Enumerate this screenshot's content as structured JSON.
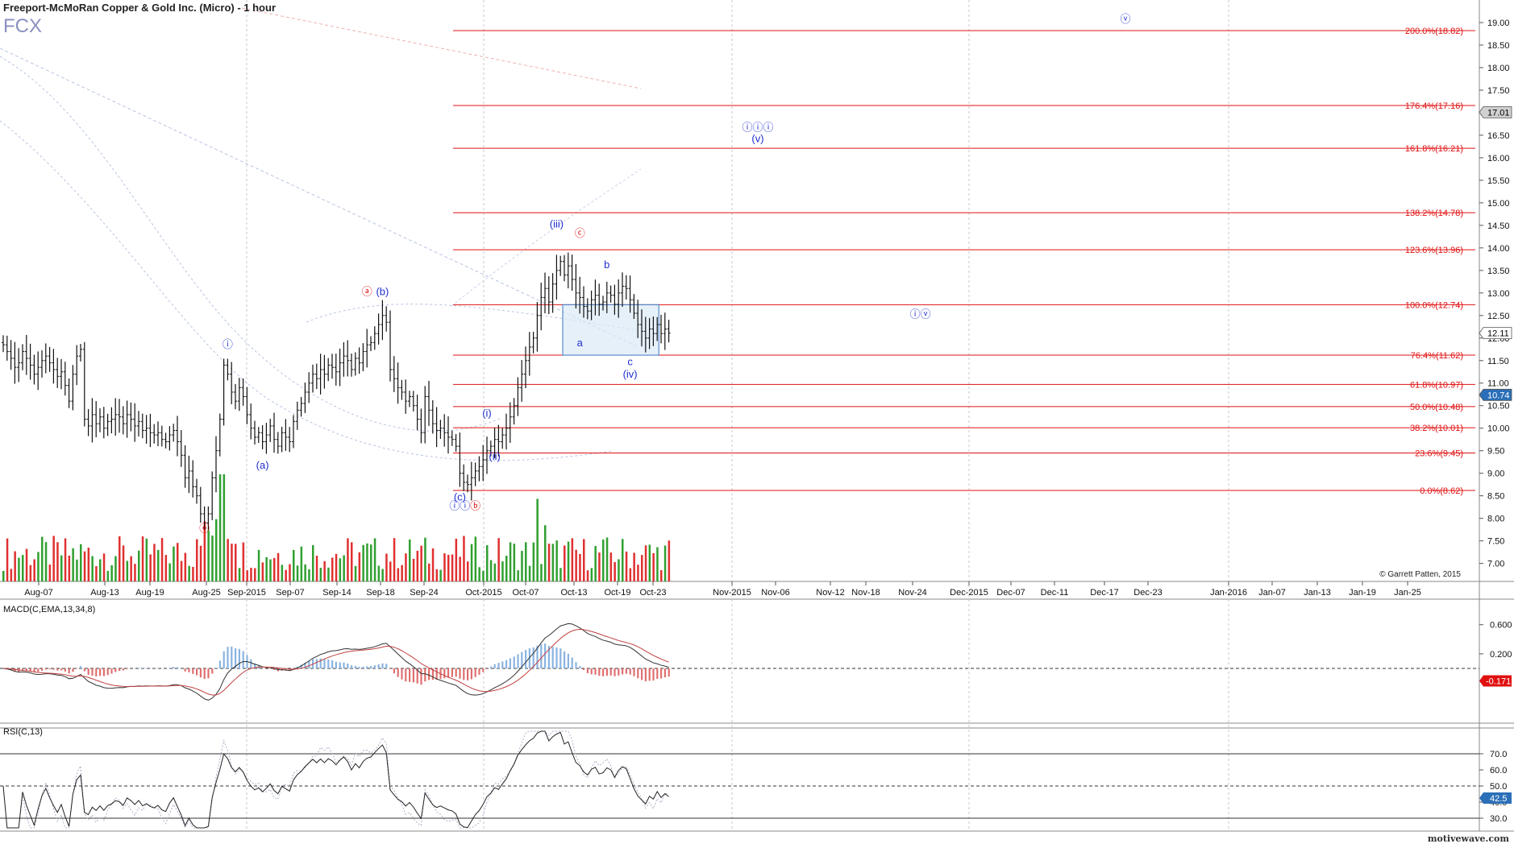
{
  "title": "Freeport-McMoRan Copper & Gold Inc. (Micro) - 1 hour",
  "symbol": "FCX",
  "copyright": "© Garrett Patten, 2015",
  "brand": "motivewave.com",
  "chart_data": {
    "type": "candlestick",
    "price_axis": {
      "ylim": [
        6.6,
        19.5
      ],
      "ticks": [
        "19.00",
        "18.50",
        "18.00",
        "17.50",
        "17.00",
        "16.50",
        "16.00",
        "15.50",
        "15.00",
        "14.50",
        "14.00",
        "13.50",
        "13.00",
        "12.50",
        "12.00",
        "11.50",
        "11.00",
        "10.50",
        "10.00",
        "9.50",
        "9.00",
        "8.50",
        "8.00",
        "7.50",
        "7.00"
      ],
      "current_price": "12.11",
      "tags": [
        {
          "label": "17.01",
          "value": 17.01,
          "color": "#d0d0d0"
        },
        {
          "label": "12.11",
          "value": 12.11,
          "color": "#ffffff"
        },
        {
          "label": "10.74",
          "value": 10.74,
          "color": "#2b6fb8"
        }
      ]
    },
    "date_ticks": [
      "Aug-07",
      "Aug-13",
      "Aug-19",
      "Aug-25",
      "Sep-2015",
      "Sep-07",
      "Sep-14",
      "Sep-18",
      "Sep-24",
      "Oct-2015",
      "Oct-07",
      "Oct-13",
      "Oct-19",
      "Oct-23",
      "Nov-2015",
      "Nov-06",
      "Nov-12",
      "Nov-18",
      "Nov-24",
      "Dec-2015",
      "Dec-07",
      "Dec-11",
      "Dec-17",
      "Dec-23",
      "Jan-2016",
      "Jan-07",
      "Jan-13",
      "Jan-19",
      "Jan-25"
    ],
    "fib_levels": [
      {
        "label": "200.0%(18.82)",
        "value": 18.82
      },
      {
        "label": "176.4%(17.16)",
        "value": 17.16
      },
      {
        "label": "161.8%(16.21)",
        "value": 16.21
      },
      {
        "label": "138.2%(14.78)",
        "value": 14.78
      },
      {
        "label": "123.6%(13.96)",
        "value": 13.96
      },
      {
        "label": "100.0%(12.74)",
        "value": 12.74
      },
      {
        "label": "76.4%(11.62)",
        "value": 11.62
      },
      {
        "label": "61.8%(10.97)",
        "value": 10.97
      },
      {
        "label": "50.0%(10.48)",
        "value": 10.48
      },
      {
        "label": "38.2%(10.01)",
        "value": 10.01
      },
      {
        "label": "23.6%(9.45)",
        "value": 9.45
      },
      {
        "label": "0.0%(8.62)",
        "value": 8.62
      }
    ],
    "wave_labels": [
      {
        "text": "ⓞ",
        "color": "red",
        "bar": 52,
        "value": 7.7
      },
      {
        "text": "ⓘ",
        "color": "blue",
        "bar": 58,
        "value": 11.78
      },
      {
        "text": "(a)",
        "color": "blue",
        "bar": 67,
        "value": 9.1
      },
      {
        "text": "ⓐ",
        "color": "red",
        "bar": 94,
        "value": 12.95
      },
      {
        "text": "(b)",
        "color": "blue",
        "bar": 98,
        "value": 12.95
      },
      {
        "text": "(c)",
        "color": "blue",
        "bar": 118,
        "value": 8.4
      },
      {
        "text": "ⓘⓘ",
        "color": "blue",
        "bar": 118,
        "value": 8.2
      },
      {
        "text": "ⓑ",
        "color": "red",
        "bar": 122,
        "value": 8.2
      },
      {
        "text": "(i)",
        "color": "blue",
        "bar": 125,
        "value": 10.25
      },
      {
        "text": "(ii)",
        "color": "blue",
        "bar": 127,
        "value": 9.3
      },
      {
        "text": "(iii)",
        "color": "blue",
        "bar": 143,
        "value": 14.45
      },
      {
        "text": "ⓒ",
        "color": "red",
        "bar": 149,
        "value": 14.25
      },
      {
        "text": "b",
        "color": "blue",
        "bar": 156,
        "value": 13.55
      },
      {
        "text": "a",
        "color": "blue",
        "bar": 149,
        "value": 11.82
      },
      {
        "text": "c",
        "color": "blue",
        "bar": 162,
        "value": 11.4
      },
      {
        "text": "(iv)",
        "color": "blue",
        "bar": 162,
        "value": 11.12
      },
      {
        "text": "ⓘⓘⓘ",
        "color": "blue",
        "bar": 195,
        "value": 16.6
      },
      {
        "text": "(v)",
        "color": "blue",
        "bar": 195,
        "value": 16.35
      },
      {
        "text": "ⓘⓥ",
        "color": "blue",
        "bar": 237,
        "value": 12.45
      },
      {
        "text": "ⓥ",
        "color": "blue",
        "bar": 290,
        "value": 19.0
      }
    ],
    "box": {
      "bar_start": 145,
      "bar_end": 169,
      "top": 12.74,
      "bottom": 11.62
    },
    "closes": [
      11.85,
      11.7,
      11.55,
      11.35,
      11.45,
      11.7,
      11.55,
      11.4,
      11.2,
      11.35,
      11.5,
      11.6,
      11.45,
      11.3,
      11.15,
      11.25,
      10.95,
      10.6,
      11.2,
      11.6,
      11.75,
      10.2,
      10.05,
      10.3,
      10.1,
      10.25,
      10.0,
      10.15,
      10.2,
      10.3,
      10.25,
      10.1,
      10.3,
      10.2,
      10.05,
      10.15,
      9.95,
      10.0,
      9.9,
      9.85,
      9.9,
      9.75,
      9.7,
      9.85,
      9.95,
      9.7,
      9.4,
      8.9,
      9.05,
      8.7,
      8.5,
      8.1,
      7.9,
      8.1,
      8.9,
      9.5,
      10.2,
      11.4,
      11.2,
      10.8,
      10.6,
      10.9,
      10.7,
      10.3,
      10.0,
      9.8,
      9.9,
      9.7,
      9.85,
      10.05,
      9.75,
      9.6,
      9.9,
      9.8,
      9.7,
      10.15,
      10.4,
      10.55,
      10.8,
      11.0,
      11.2,
      11.1,
      11.3,
      11.2,
      11.4,
      11.35,
      11.25,
      11.45,
      11.6,
      11.5,
      11.3,
      11.55,
      11.45,
      11.7,
      11.85,
      11.9,
      12.1,
      12.3,
      12.5,
      12.35,
      11.3,
      11.1,
      10.9,
      10.8,
      10.6,
      10.7,
      10.5,
      10.2,
      9.9,
      10.7,
      10.4,
      10.1,
      9.95,
      10.0,
      9.9,
      9.8,
      9.75,
      9.6,
      9.0,
      8.8,
      8.75,
      8.9,
      9.05,
      9.15,
      9.3,
      9.5,
      9.6,
      9.75,
      9.7,
      9.85,
      10.0,
      10.25,
      10.5,
      10.9,
      11.2,
      11.5,
      11.8,
      12.0,
      12.5,
      12.9,
      13.1,
      12.8,
      13.2,
      13.5,
      13.7,
      13.4,
      13.6,
      13.3,
      13.0,
      12.9,
      12.7,
      12.6,
      12.85,
      12.95,
      12.75,
      12.8,
      13.0,
      12.95,
      12.75,
      13.0,
      13.15,
      13.1,
      12.85,
      12.55,
      12.3,
      12.15,
      12.0,
      12.2,
      12.1,
      12.3,
      12.1,
      12.2,
      12.11
    ],
    "volume_ylim": [
      0,
      5.5
    ],
    "macd": {
      "title": "MACD(C,EMA,13,34,8)",
      "ylim": [
        -0.75,
        0.95
      ],
      "ticks": [
        "0.600",
        "0.200"
      ],
      "current": "-0.171",
      "zero_line": 0
    },
    "rsi": {
      "title": "RSI(C,13)",
      "ylim": [
        22,
        86
      ],
      "ticks": [
        "70.0",
        "60.0",
        "50.0",
        "40.0",
        "30.0"
      ],
      "current": "42.5",
      "levels": [
        70,
        50,
        30
      ]
    }
  }
}
